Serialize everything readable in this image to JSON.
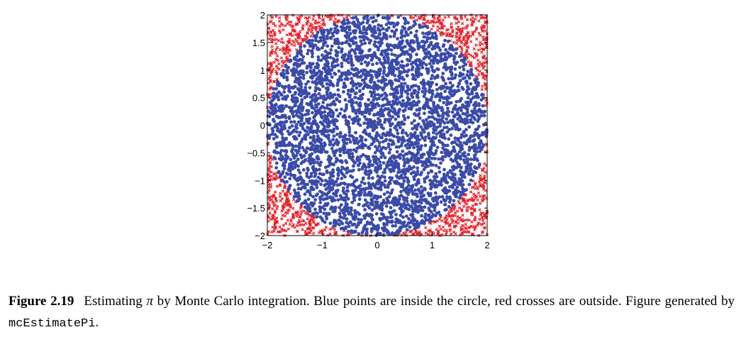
{
  "chart_data": {
    "type": "scatter",
    "title": "",
    "xlabel": "",
    "ylabel": "",
    "xlim": [
      -2,
      2
    ],
    "ylim": [
      -2,
      2
    ],
    "xticks": [
      -2,
      -1,
      0,
      1,
      2
    ],
    "yticks": [
      -2,
      -1.5,
      -1,
      -0.5,
      0,
      0.5,
      1,
      1.5,
      2
    ],
    "xtick_labels": [
      "−2",
      "−1",
      "0",
      "1",
      "2"
    ],
    "ytick_labels": [
      "−2",
      "−1.5",
      "−1",
      "−0.5",
      "0",
      "0.5",
      "1",
      "1.5",
      "2"
    ],
    "grid": false,
    "legend": "none",
    "circle_radius": 2,
    "num_samples": 5000,
    "series": [
      {
        "marker": "filled-circle",
        "color": "#3b4ba8",
        "region": "inside circle"
      },
      {
        "marker": "cross",
        "color": "#e0202a",
        "region": "outside circle"
      }
    ]
  },
  "caption": {
    "label": "Figure 2.19",
    "text_before_pi": "Estimating ",
    "pi": "π",
    "text_after_pi": " by Monte Carlo integration. Blue points are inside the circle, red crosses are outside. Figure generated by ",
    "code": "mcEstimatePi",
    "text_end": "."
  }
}
